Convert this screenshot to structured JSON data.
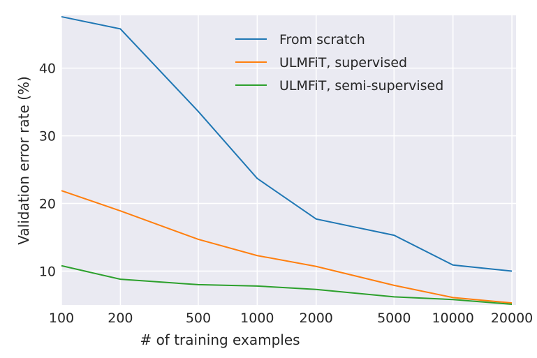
{
  "chart_data": {
    "type": "line",
    "xlabel": "# of training examples",
    "ylabel": "Validation error rate (%)",
    "xscale": "log",
    "xlim": [
      100,
      21000
    ],
    "ylim": [
      5,
      47.8
    ],
    "xticks": [
      100,
      200,
      500,
      1000,
      2000,
      5000,
      10000,
      20000
    ],
    "xtick_labels": [
      "100",
      "200",
      "500",
      "1000",
      "2000",
      "5000",
      "10000",
      "20000"
    ],
    "yticks": [
      10,
      20,
      30,
      40
    ],
    "ytick_labels": [
      "10",
      "20",
      "30",
      "40"
    ],
    "grid": true,
    "legend_placement": "top-right",
    "x": [
      100,
      200,
      500,
      1000,
      2000,
      5000,
      10000,
      20000
    ],
    "series": [
      {
        "name": "From scratch",
        "color": "#1f77b4",
        "values": [
          47.6,
          45.8,
          33.6,
          23.7,
          17.7,
          15.3,
          10.9,
          10.0
        ]
      },
      {
        "name": "ULMFiT, supervised",
        "color": "#ff7f0e",
        "values": [
          21.9,
          18.9,
          14.7,
          12.3,
          10.7,
          7.9,
          6.1,
          5.3
        ]
      },
      {
        "name": "ULMFiT, semi-supervised",
        "color": "#2ca02c",
        "values": [
          10.8,
          8.8,
          8.0,
          7.8,
          7.3,
          6.2,
          5.8,
          5.1
        ]
      }
    ],
    "style": {
      "background": "#eaeaf2",
      "grid_color": "#ffffff"
    }
  }
}
